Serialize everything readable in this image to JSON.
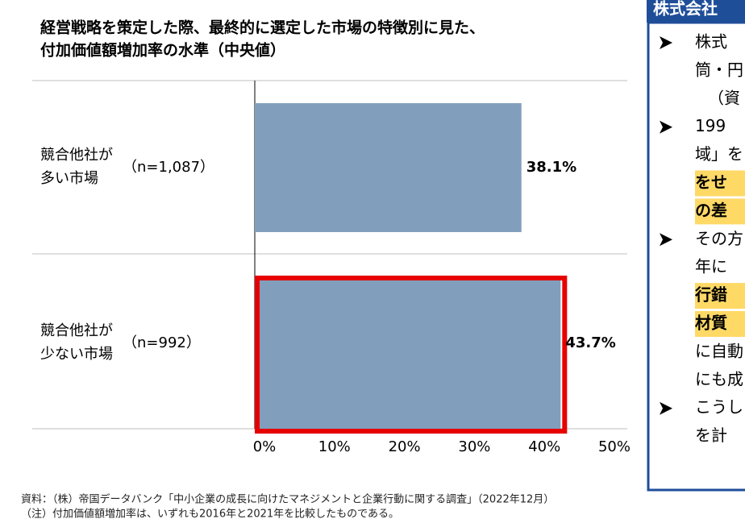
{
  "chart_data": {
    "type": "hbar",
    "title": [
      "経営戦略を策定した際、最終的に選定した市場の特徴別に見た、",
      "付加価値額増加率の水準（中央値）"
    ],
    "categories": [
      [
        "競合他社が",
        "多い市場"
      ],
      [
        "競合他社が",
        "少ない市場"
      ]
    ],
    "sample_sizes": [
      "（n=1,087）",
      "（n=992）"
    ],
    "values": [
      38.1,
      43.7
    ],
    "value_labels": [
      "38.1%",
      "43.7%"
    ],
    "color": "#819fbd",
    "highlight_index": 1,
    "highlight_color": "#e60000",
    "xlim": [
      0,
      50
    ],
    "xticks": [
      {
        "value": 0,
        "label": "0%"
      },
      {
        "value": 10,
        "label": "10%"
      },
      {
        "value": 20,
        "label": "20%"
      },
      {
        "value": 30,
        "label": "30%"
      },
      {
        "value": 40,
        "label": "40%"
      },
      {
        "value": 50,
        "label": "50%"
      }
    ]
  },
  "notes": [
    "資料：（株）帝国データバンク「中小企業の成長に向けたマネジメントと企業行動に関する調査」（2022年12月）",
    "（注）付加価値額増加率は、いずれも2016年と2021年を比較したものである。"
  ],
  "side_panel": {
    "header": "株式会社",
    "items": [
      [
        {
          "text": "株式"
        },
        {
          "text": "筒・円"
        },
        {
          "text": "（資"
        }
      ],
      [
        {
          "text": "199"
        },
        {
          "text": "域」を"
        },
        {
          "text": "をせ",
          "bold": true
        },
        {
          "text": "の差",
          "bold": true
        }
      ],
      [
        {
          "text": "その方"
        },
        {
          "text": "年に"
        },
        {
          "text": "行錯",
          "bold": true
        },
        {
          "text": "材質",
          "bold": true
        },
        {
          "text": "に自動"
        },
        {
          "text": "にも成"
        }
      ],
      [
        {
          "text": "こうし"
        },
        {
          "text": "を計"
        }
      ]
    ]
  }
}
